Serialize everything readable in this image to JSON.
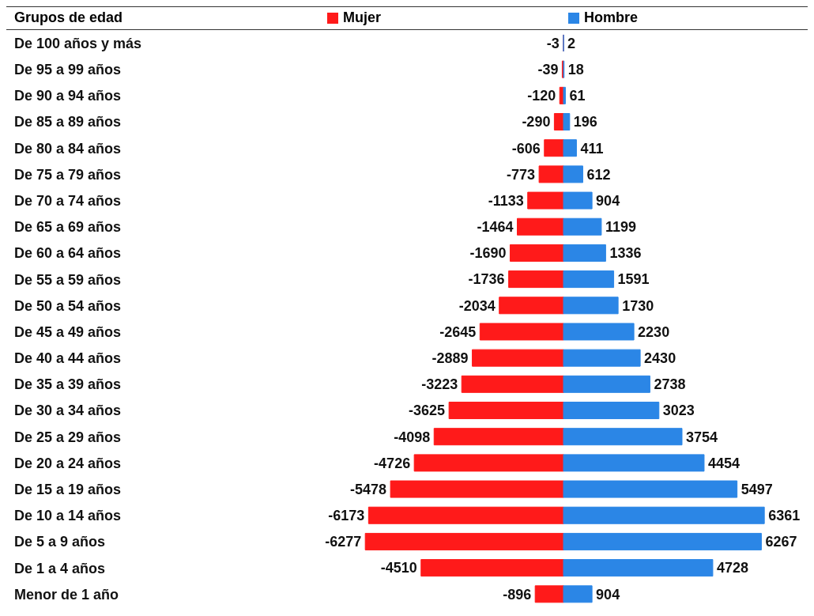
{
  "chart_data": {
    "type": "bar",
    "orientation": "horizontal",
    "stacked": true,
    "ylabel": "Grupos de edad",
    "categories": [
      "De 100 años y más",
      "De 95 a 99 años",
      "De 90 a 94 años",
      "De 85 a 89 años",
      "De 80 a 84 años",
      "De 75 a 79 años",
      "De 70 a 74 años",
      "De 65 a 69 años",
      "De 60 a 64 años",
      "De 55 a 59 años",
      "De 50 a 54 años",
      "De 45 a 49 años",
      "De 40 a 44 años",
      "De 35 a 39 años",
      "De 30 a 34 años",
      "De 25 a 29 años",
      "De 20 a 24 años",
      "De 15 a 19 años",
      "De 10 a 14 años",
      "De 5 a 9 años",
      "De 1 a 4 años",
      "Menor de 1 año"
    ],
    "series": [
      {
        "name": "Mujer",
        "color": "#ff1a1a",
        "values": [
          -3,
          -39,
          -120,
          -290,
          -606,
          -773,
          -1133,
          -1464,
          -1690,
          -1736,
          -2034,
          -2645,
          -2889,
          -3223,
          -3625,
          -4098,
          -4726,
          -5478,
          -6173,
          -6277,
          -4510,
          -896
        ]
      },
      {
        "name": "Hombre",
        "color": "#2b86e6",
        "values": [
          2,
          18,
          61,
          196,
          411,
          612,
          904,
          1199,
          1336,
          1591,
          1730,
          2230,
          2430,
          2738,
          3023,
          3754,
          4454,
          5497,
          6361,
          6267,
          4728,
          904
        ]
      }
    ],
    "tick_labels": "y",
    "data_labels": true,
    "legend": "top"
  }
}
